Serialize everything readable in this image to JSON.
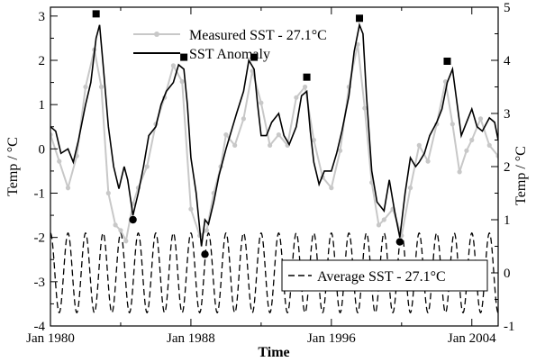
{
  "chart_data": {
    "type": "line",
    "xlabel": "Time",
    "ylabel_left": "Temp / °C",
    "ylabel_right": "Temp / °C",
    "xlim": [
      1980,
      2005.5
    ],
    "ylim_left": [
      -4,
      3.2
    ],
    "ylim_right": [
      -1,
      5
    ],
    "x_ticks": [
      1980,
      1988,
      1996,
      2004
    ],
    "x_tick_labels": [
      "Jan 1980",
      "Jan 1988",
      "Jan 1996",
      "Jan 2004"
    ],
    "y_ticks_left": [
      -4,
      -3,
      -2,
      -1,
      0,
      1,
      2,
      3
    ],
    "y_ticks_right": [
      -1,
      0,
      1,
      2,
      3,
      4,
      5
    ],
    "grid": false,
    "legend_upper": {
      "placement": "top-center"
    },
    "legend_lower": {
      "placement": "bottom-right"
    },
    "series": [
      {
        "name": "Measured SST - 27.1°C",
        "axis": "right",
        "style": "grey line with dots",
        "color": "#c8c8c8",
        "x": [
          1980.0,
          1980.5,
          1981.0,
          1981.5,
          1982.0,
          1982.5,
          1982.9,
          1983.3,
          1983.7,
          1984.0,
          1984.3,
          1984.7,
          1985.0,
          1985.5,
          1986.0,
          1986.5,
          1987.0,
          1987.5,
          1988.0,
          1988.5,
          1988.9,
          1989.3,
          1989.7,
          1990.0,
          1990.5,
          1991.0,
          1991.5,
          1992.0,
          1992.5,
          1993.0,
          1993.5,
          1994.0,
          1994.5,
          1995.0,
          1995.5,
          1996.0,
          1996.5,
          1997.0,
          1997.5,
          1997.9,
          1998.3,
          1998.7,
          1999.0,
          1999.5,
          2000.0,
          2000.5,
          2001.0,
          2001.5,
          2002.0,
          2002.5,
          2002.9,
          2003.3,
          2003.7,
          2004.0,
          2004.5,
          2005.0,
          2005.5
        ],
        "values": [
          2.6,
          2.1,
          1.6,
          2.2,
          3.5,
          4.2,
          3.5,
          1.5,
          0.9,
          0.8,
          0.6,
          1.3,
          1.6,
          2.0,
          2.8,
          3.3,
          3.9,
          3.6,
          1.2,
          0.7,
          0.8,
          1.5,
          2.0,
          2.6,
          2.4,
          2.9,
          3.8,
          3.2,
          2.4,
          2.6,
          2.4,
          3.3,
          3.5,
          2.5,
          1.8,
          1.6,
          2.3,
          3.5,
          4.3,
          3.1,
          1.7,
          0.9,
          1.0,
          1.2,
          0.7,
          1.6,
          2.4,
          2.1,
          2.8,
          3.6,
          2.8,
          1.9,
          2.3,
          2.5,
          2.9,
          2.4,
          2.2
        ]
      },
      {
        "name": "SST Anomaly",
        "axis": "left",
        "style": "black solid line",
        "color": "#000000",
        "x": [
          1980.0,
          1980.3,
          1980.6,
          1981.0,
          1981.3,
          1981.6,
          1982.0,
          1982.3,
          1982.6,
          1982.8,
          1983.0,
          1983.3,
          1983.6,
          1983.9,
          1984.2,
          1984.4,
          1984.7,
          1985.0,
          1985.3,
          1985.6,
          1986.0,
          1986.3,
          1986.6,
          1987.0,
          1987.3,
          1987.6,
          1987.8,
          1988.0,
          1988.3,
          1988.6,
          1988.8,
          1989.0,
          1989.3,
          1989.6,
          1990.0,
          1990.3,
          1990.6,
          1991.0,
          1991.3,
          1991.6,
          1991.8,
          1992.0,
          1992.3,
          1992.6,
          1993.0,
          1993.3,
          1993.6,
          1994.0,
          1994.3,
          1994.6,
          1994.8,
          1995.0,
          1995.3,
          1995.6,
          1996.0,
          1996.3,
          1996.6,
          1997.0,
          1997.3,
          1997.6,
          1997.8,
          1998.0,
          1998.3,
          1998.6,
          1999.0,
          1999.3,
          1999.6,
          1999.9,
          2000.2,
          2000.5,
          2000.8,
          2001.0,
          2001.3,
          2001.6,
          2002.0,
          2002.3,
          2002.6,
          2002.9,
          2003.1,
          2003.4,
          2003.7,
          2004.0,
          2004.3,
          2004.6,
          2005.0,
          2005.3,
          2005.5
        ],
        "values": [
          0.5,
          0.4,
          -0.1,
          0.0,
          -0.3,
          0.2,
          1.0,
          1.5,
          2.5,
          2.8,
          1.9,
          0.5,
          -0.4,
          -0.9,
          -0.4,
          -0.7,
          -1.5,
          -1.0,
          -0.4,
          0.3,
          0.5,
          1.0,
          1.3,
          1.5,
          1.9,
          1.8,
          1.0,
          -0.2,
          -1.0,
          -2.2,
          -1.6,
          -1.7,
          -1.2,
          -0.6,
          0.0,
          0.4,
          0.8,
          1.3,
          2.0,
          1.8,
          1.0,
          0.3,
          0.3,
          0.6,
          0.8,
          0.3,
          0.1,
          0.5,
          1.2,
          1.3,
          0.4,
          -0.3,
          -0.8,
          -0.5,
          -0.5,
          -0.1,
          0.4,
          1.2,
          2.2,
          2.8,
          2.6,
          1.2,
          -0.5,
          -1.2,
          -1.4,
          -0.7,
          -1.4,
          -2.0,
          -1.0,
          -0.2,
          -0.4,
          -0.3,
          -0.1,
          0.3,
          0.6,
          0.9,
          1.5,
          1.8,
          1.2,
          0.3,
          0.6,
          0.9,
          0.5,
          0.4,
          0.7,
          0.6,
          0.2
        ]
      },
      {
        "name": "Average SST - 27.1°C",
        "axis": "right",
        "style": "black dashed seasonal cycle",
        "color": "#000000",
        "periodic": {
          "mean": 0.0,
          "amplitude": 0.75,
          "period_years": 1.0,
          "from": 1980,
          "to": 2005.5
        }
      }
    ],
    "peak_markers": {
      "style": "filled square",
      "x": [
        1982.6,
        1987.6,
        1991.6,
        1994.6,
        1997.6,
        2002.6
      ],
      "values": [
        3.05,
        2.07,
        2.07,
        1.62,
        2.95,
        1.98
      ]
    },
    "trough_markers": {
      "style": "filled circle",
      "x": [
        1984.7,
        1988.8,
        1999.9
      ],
      "values": [
        -1.6,
        -2.38,
        -2.1
      ]
    }
  }
}
